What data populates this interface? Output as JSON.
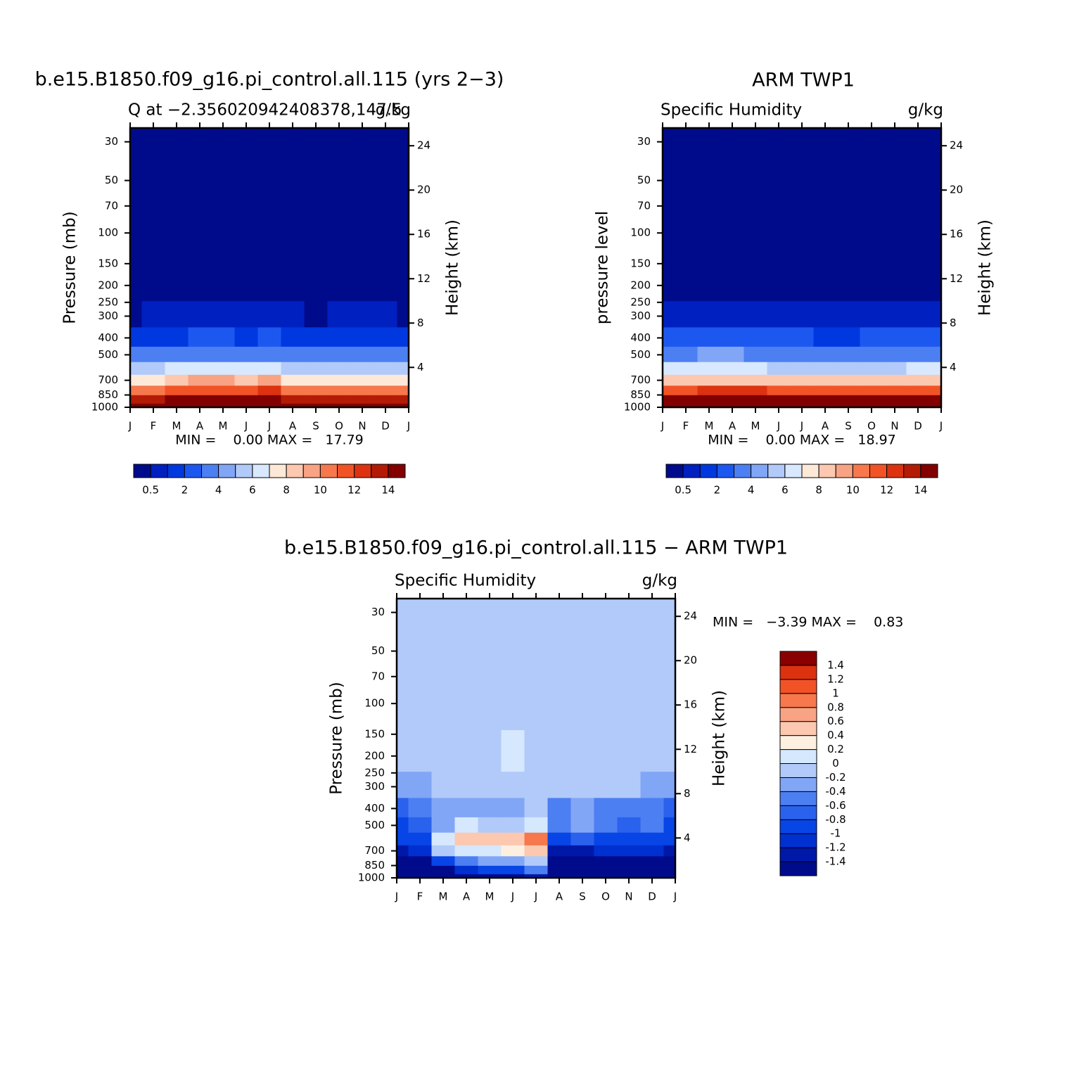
{
  "chart_data": [
    {
      "type": "contour",
      "title": "b.e15.B1850.f09_g16.pi_control.all.115 (yrs 2−3)",
      "subtitle_left": "Q at −2.356020942408378,147.5",
      "subtitle_right": "g/kg",
      "ylabel": "Pressure (mb)",
      "y2label": "Height (km)",
      "stats": "MIN =    0.00 MAX =   17.79",
      "categories": [
        "J",
        "F",
        "M",
        "A",
        "M",
        "J",
        "J",
        "A",
        "S",
        "O",
        "N",
        "D",
        "J"
      ],
      "y": [
        1000,
        900,
        800,
        700,
        600,
        500,
        400,
        300,
        200,
        100,
        30
      ],
      "z": [
        [
          17.0,
          17.2,
          17.4,
          17.5,
          17.6,
          17.5,
          17.79,
          17.3,
          17.0,
          17.1,
          17.2,
          17.1,
          17.0
        ],
        [
          13.5,
          13.8,
          14.2,
          14.5,
          14.6,
          14.5,
          14.8,
          13.6,
          13.4,
          13.5,
          13.6,
          13.5,
          13.5
        ],
        [
          10.2,
          10.6,
          11.5,
          11.8,
          11.8,
          11.6,
          12.0,
          10.0,
          10.0,
          10.1,
          10.3,
          10.2,
          10.2
        ],
        [
          7.2,
          7.6,
          8.6,
          9.0,
          9.0,
          8.7,
          9.2,
          7.0,
          7.1,
          7.0,
          7.2,
          7.2,
          7.2
        ],
        [
          5.0,
          5.3,
          6.0,
          6.2,
          6.2,
          6.0,
          6.4,
          5.0,
          5.1,
          5.0,
          5.0,
          5.0,
          5.0
        ],
        [
          3.0,
          3.2,
          3.6,
          3.8,
          3.8,
          3.6,
          3.9,
          3.1,
          3.2,
          3.1,
          3.0,
          3.0,
          3.0
        ],
        [
          1.5,
          1.7,
          1.9,
          2.0,
          2.0,
          1.8,
          2.0,
          1.6,
          1.7,
          1.6,
          1.6,
          1.5,
          1.4
        ],
        [
          0.4,
          0.5,
          0.55,
          0.6,
          0.6,
          0.5,
          0.6,
          0.5,
          0.45,
          0.5,
          0.55,
          0.5,
          0.4
        ],
        [
          0.1,
          0.1,
          0.1,
          0.1,
          0.1,
          0.1,
          0.1,
          0.1,
          0.1,
          0.1,
          0.1,
          0.1,
          0.1
        ],
        [
          0.02,
          0.02,
          0.02,
          0.02,
          0.02,
          0.02,
          0.02,
          0.02,
          0.02,
          0.02,
          0.02,
          0.02,
          0.02
        ],
        [
          0,
          0,
          0,
          0,
          0,
          0,
          0,
          0,
          0,
          0,
          0,
          0,
          0
        ]
      ],
      "log_y": true,
      "ylim": [
        1000,
        25
      ],
      "yticks": [
        30,
        50,
        70,
        100,
        150,
        200,
        250,
        300,
        400,
        500,
        700,
        850,
        1000
      ],
      "y2lim": [
        0.4,
        25.6
      ],
      "y2ticks": [
        4,
        8,
        12,
        16,
        20,
        24
      ],
      "colorbar": {
        "orientation": "horizontal",
        "levels": [
          0.5,
          1,
          2,
          3,
          4,
          5,
          6,
          7,
          8,
          9,
          10,
          11,
          12,
          13,
          14
        ],
        "ticks": [
          0.5,
          2,
          4,
          6,
          8,
          10,
          12,
          14
        ],
        "colors": [
          "#000b8c",
          "#0020c0",
          "#0038e0",
          "#1c58f0",
          "#4c7ff2",
          "#82a6f6",
          "#b2caf9",
          "#d8e8fe",
          "#fee8d8",
          "#fcc8b0",
          "#f8a384",
          "#f7784c",
          "#f15326",
          "#dc3210",
          "#b41b06",
          "#820000"
        ]
      }
    },
    {
      "type": "contour",
      "title": "ARM TWP1",
      "subtitle_left": "Specific Humidity",
      "subtitle_right": "g/kg",
      "ylabel": "pressure level",
      "y2label": "Height (km)",
      "stats": "MIN =    0.00 MAX =   18.97",
      "categories": [
        "J",
        "F",
        "M",
        "A",
        "M",
        "J",
        "J",
        "A",
        "S",
        "O",
        "N",
        "D",
        "J"
      ],
      "y": [
        1000,
        900,
        800,
        700,
        600,
        500,
        400,
        300,
        200,
        100,
        30
      ],
      "z": [
        [
          18.6,
          18.7,
          18.8,
          18.9,
          18.97,
          18.8,
          18.7,
          18.6,
          18.6,
          18.7,
          18.8,
          18.7,
          18.6
        ],
        [
          15.4,
          15.5,
          15.6,
          15.7,
          15.7,
          15.6,
          15.5,
          15.4,
          15.3,
          15.4,
          15.5,
          15.5,
          15.4
        ],
        [
          11.8,
          11.9,
          12.0,
          12.0,
          12.0,
          11.9,
          11.8,
          11.7,
          11.6,
          11.7,
          11.8,
          11.8,
          11.8
        ],
        [
          8.6,
          8.7,
          8.8,
          8.8,
          8.8,
          8.7,
          8.6,
          8.5,
          8.4,
          8.5,
          8.6,
          8.6,
          8.6
        ],
        [
          6.0,
          6.0,
          6.1,
          6.1,
          6.0,
          5.9,
          5.9,
          5.8,
          5.7,
          5.8,
          5.9,
          6.0,
          6.0
        ],
        [
          3.9,
          3.9,
          4.0,
          4.0,
          3.9,
          3.8,
          3.8,
          3.7,
          3.6,
          3.7,
          3.8,
          3.9,
          3.9
        ],
        [
          2.1,
          2.1,
          2.2,
          2.2,
          2.1,
          2.0,
          2.0,
          1.9,
          1.9,
          2.0,
          2.0,
          2.1,
          2.1
        ],
        [
          0.7,
          0.7,
          0.7,
          0.7,
          0.65,
          0.65,
          0.65,
          0.65,
          0.6,
          0.6,
          0.6,
          0.6,
          0.7
        ],
        [
          0.15,
          0.15,
          0.15,
          0.15,
          0.15,
          0.15,
          0.15,
          0.15,
          0.15,
          0.15,
          0.15,
          0.15,
          0.15
        ],
        [
          0.02,
          0.02,
          0.02,
          0.02,
          0.02,
          0.02,
          0.02,
          0.02,
          0.02,
          0.02,
          0.02,
          0.02,
          0.02
        ],
        [
          0,
          0,
          0,
          0,
          0,
          0,
          0,
          0,
          0,
          0,
          0,
          0,
          0
        ]
      ],
      "log_y": true,
      "ylim": [
        1000,
        25
      ],
      "yticks": [
        30,
        50,
        70,
        100,
        150,
        200,
        250,
        300,
        400,
        500,
        700,
        850,
        1000
      ],
      "y2lim": [
        0.4,
        25.6
      ],
      "y2ticks": [
        4,
        8,
        12,
        16,
        20,
        24
      ],
      "colorbar": {
        "orientation": "horizontal",
        "levels": [
          0.5,
          1,
          2,
          3,
          4,
          5,
          6,
          7,
          8,
          9,
          10,
          11,
          12,
          13,
          14
        ],
        "ticks": [
          0.5,
          2,
          4,
          6,
          8,
          10,
          12,
          14
        ],
        "colors": [
          "#000b8c",
          "#0020c0",
          "#0038e0",
          "#1c58f0",
          "#4c7ff2",
          "#82a6f6",
          "#b2caf9",
          "#d8e8fe",
          "#fee8d8",
          "#fcc8b0",
          "#f8a384",
          "#f7784c",
          "#f15326",
          "#dc3210",
          "#b41b06",
          "#820000"
        ]
      }
    },
    {
      "type": "contour",
      "title": "b.e15.B1850.f09_g16.pi_control.all.115 − ARM TWP1",
      "subtitle_left": "Specific Humidity",
      "subtitle_right": "g/kg",
      "ylabel": "Pressure (mb)",
      "y2label": "Height (km)",
      "stats": "MIN =   −3.39 MAX =    0.83",
      "categories": [
        "J",
        "F",
        "M",
        "A",
        "M",
        "J",
        "J",
        "A",
        "S",
        "O",
        "N",
        "D",
        "J"
      ],
      "y": [
        1000,
        900,
        800,
        700,
        600,
        500,
        400,
        300,
        200,
        100,
        30
      ],
      "z": [
        [
          -2.0,
          -2.2,
          -2.4,
          -2.0,
          -1.8,
          -2.0,
          -1.4,
          -2.4,
          -3.39,
          -2.6,
          -2.4,
          -2.6,
          -2.0
        ],
        [
          -1.6,
          -1.6,
          -1.5,
          -1.2,
          -1.0,
          -1.0,
          -0.6,
          -1.8,
          -1.7,
          -1.6,
          -1.7,
          -1.6,
          -1.6
        ],
        [
          -1.5,
          -1.5,
          -0.9,
          -0.5,
          -0.4,
          -0.4,
          -0.1,
          -1.5,
          -1.5,
          -1.5,
          -1.5,
          -1.5,
          -1.5
        ],
        [
          -1.3,
          -1.2,
          -0.1,
          0.1,
          0.1,
          0.2,
          0.5,
          -1.3,
          -1.3,
          -1.2,
          -1.2,
          -1.2,
          -1.3
        ],
        [
          -1.0,
          -0.9,
          0.1,
          0.4,
          0.4,
          0.5,
          0.83,
          -0.9,
          -0.8,
          -0.9,
          -1.0,
          -0.9,
          -1.0
        ],
        [
          -0.9,
          -0.8,
          -0.4,
          0.0,
          -0.2,
          -0.1,
          0.1,
          -0.6,
          -0.4,
          -0.6,
          -0.7,
          -0.5,
          -0.9
        ],
        [
          -0.7,
          -0.6,
          -0.4,
          -0.3,
          -0.25,
          -0.3,
          -0.2,
          -0.5,
          -0.4,
          -0.5,
          -0.6,
          -0.5,
          -0.7
        ],
        [
          -0.3,
          -0.25,
          -0.2,
          -0.15,
          -0.15,
          -0.15,
          -0.15,
          -0.2,
          -0.2,
          -0.2,
          -0.2,
          -0.25,
          -0.3
        ],
        [
          -0.1,
          -0.1,
          -0.1,
          -0.1,
          -0.1,
          0.05,
          -0.1,
          -0.1,
          -0.1,
          -0.1,
          -0.1,
          -0.1,
          -0.1
        ],
        [
          -0.05,
          -0.05,
          -0.05,
          -0.05,
          -0.05,
          -0.05,
          -0.05,
          -0.05,
          -0.05,
          -0.05,
          -0.05,
          -0.05,
          -0.05
        ],
        [
          -0.05,
          -0.05,
          -0.05,
          -0.05,
          -0.05,
          -0.05,
          -0.05,
          -0.05,
          -0.05,
          -0.05,
          -0.05,
          -0.05,
          -0.05
        ]
      ],
      "log_y": true,
      "ylim": [
        1000,
        25
      ],
      "yticks": [
        30,
        50,
        70,
        100,
        150,
        200,
        250,
        300,
        400,
        500,
        700,
        850,
        1000
      ],
      "y2lim": [
        0.4,
        25.6
      ],
      "y2ticks": [
        4,
        8,
        12,
        16,
        20,
        24
      ],
      "colorbar": {
        "orientation": "vertical",
        "levels": [
          -1.4,
          -1.2,
          -1,
          -0.8,
          -0.6,
          -0.4,
          -0.2,
          0,
          0.2,
          0.4,
          0.6,
          0.8,
          1,
          1.2,
          1.4
        ],
        "ticks": [
          -1.4,
          -1.2,
          -1,
          -0.8,
          -0.6,
          -0.4,
          -0.2,
          0,
          0.2,
          0.4,
          0.6,
          0.8,
          1,
          1.2,
          1.4
        ],
        "colors": [
          "#000b8c",
          "#0018a8",
          "#0030d0",
          "#0845e6",
          "#2a62ee",
          "#4c7ff2",
          "#82a6f6",
          "#b2caf9",
          "#d6e8fe",
          "#fef0e0",
          "#fcc8b0",
          "#f8a384",
          "#f7784c",
          "#f15326",
          "#dc3210",
          "#8a0000"
        ]
      }
    }
  ]
}
